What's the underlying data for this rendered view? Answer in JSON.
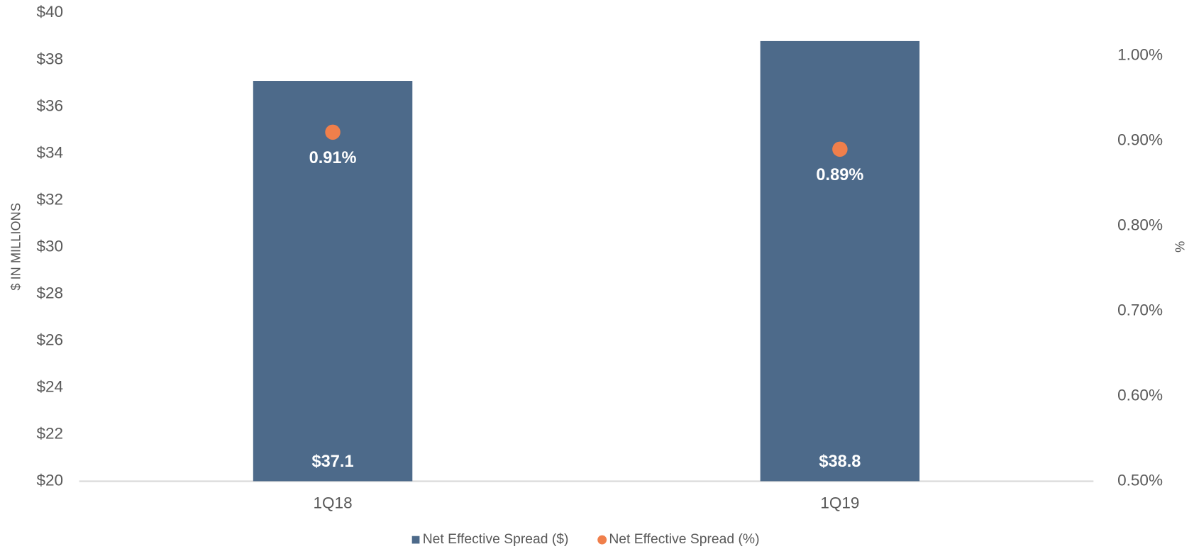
{
  "chart_data": {
    "type": "bar",
    "y_label": "$ IN MILLIONS",
    "y2_label": "%",
    "categories": [
      "1Q18",
      "1Q19"
    ],
    "series": [
      {
        "name": "Net Effective Spread ($)",
        "type": "bar",
        "color": "#4d6a8a",
        "values": [
          37.1,
          38.8
        ],
        "value_labels": [
          "$37.1",
          "$38.8"
        ]
      },
      {
        "name": "Net Effective Spread (%)",
        "type": "scatter",
        "axis": "y2",
        "color": "#f07f4b",
        "values": [
          0.91,
          0.89
        ],
        "value_labels": [
          "0.91%",
          "0.89%"
        ]
      }
    ],
    "ylim": [
      20,
      40
    ],
    "yticks": [
      {
        "value": 20,
        "label": "$20"
      },
      {
        "value": 22,
        "label": "$22"
      },
      {
        "value": 24,
        "label": "$24"
      },
      {
        "value": 26,
        "label": "$26"
      },
      {
        "value": 28,
        "label": "$28"
      },
      {
        "value": 30,
        "label": "$30"
      },
      {
        "value": 32,
        "label": "$32"
      },
      {
        "value": 34,
        "label": "$34"
      },
      {
        "value": 36,
        "label": "$36"
      },
      {
        "value": 38,
        "label": "$38"
      },
      {
        "value": 40,
        "label": "$40"
      }
    ],
    "y2lim": [
      0.5,
      1.05
    ],
    "y2ticks": [
      {
        "value": 0.5,
        "label": "0.50%"
      },
      {
        "value": 0.6,
        "label": "0.60%"
      },
      {
        "value": 0.7,
        "label": "0.70%"
      },
      {
        "value": 0.8,
        "label": "0.80%"
      },
      {
        "value": 0.9,
        "label": "0.90%"
      },
      {
        "value": 1.0,
        "label": "1.00%"
      }
    ],
    "legend": "bottom"
  }
}
